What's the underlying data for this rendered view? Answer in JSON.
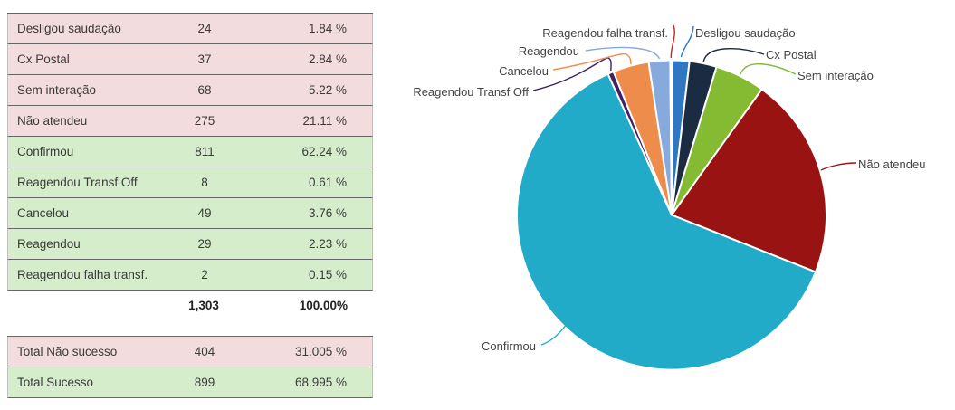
{
  "table": {
    "rows": [
      {
        "label": "Desligou saudação",
        "value": "24",
        "pct": "1.84 %",
        "tone": "pink"
      },
      {
        "label": "Cx Postal",
        "value": "37",
        "pct": "2.84 %",
        "tone": "pink"
      },
      {
        "label": "Sem interação",
        "value": "68",
        "pct": "5.22 %",
        "tone": "pink"
      },
      {
        "label": "Não atendeu",
        "value": "275",
        "pct": "21.11 %",
        "tone": "pink"
      },
      {
        "label": "Confirmou",
        "value": "811",
        "pct": "62.24 %",
        "tone": "green"
      },
      {
        "label": "Reagendou Transf Off",
        "value": "8",
        "pct": "0.61 %",
        "tone": "green"
      },
      {
        "label": "Cancelou",
        "value": "49",
        "pct": "3.76 %",
        "tone": "green"
      },
      {
        "label": "Reagendou",
        "value": "29",
        "pct": "2.23 %",
        "tone": "green"
      },
      {
        "label": "Reagendou falha transf.",
        "value": "2",
        "pct": "0.15 %",
        "tone": "green"
      }
    ],
    "total": {
      "value": "1,303",
      "pct": "100.00%"
    },
    "summary": [
      {
        "label": "Total Não sucesso",
        "value": "404",
        "pct": "31.005 %",
        "tone": "pink"
      },
      {
        "label": "Total Sucesso",
        "value": "899",
        "pct": "68.995 %",
        "tone": "green"
      }
    ]
  },
  "chart_data": {
    "type": "pie",
    "total": 1303,
    "start_angle_deg": 0,
    "direction": "clockwise",
    "legend_position": "outside-callouts",
    "slices": [
      {
        "label": "Desligou saudação",
        "value": 24,
        "pct": 1.84,
        "color": "#2f77c2"
      },
      {
        "label": "Cx Postal",
        "value": 37,
        "pct": 2.84,
        "color": "#1a2b42"
      },
      {
        "label": "Sem interação",
        "value": 68,
        "pct": 5.22,
        "color": "#85ba33"
      },
      {
        "label": "Não atendeu",
        "value": 275,
        "pct": 21.11,
        "color": "#9a1313"
      },
      {
        "label": "Confirmou",
        "value": 811,
        "pct": 62.24,
        "color": "#22aac9"
      },
      {
        "label": "Reagendou Transf Off",
        "value": 8,
        "pct": 0.61,
        "color": "#3e2166"
      },
      {
        "label": "Cancelou",
        "value": 49,
        "pct": 3.76,
        "color": "#ee8c4c"
      },
      {
        "label": "Reagendou",
        "value": 29,
        "pct": 2.23,
        "color": "#87aadc"
      },
      {
        "label": "Reagendou falha transf.",
        "value": 2,
        "pct": 0.15,
        "color": "#c42525"
      }
    ]
  }
}
